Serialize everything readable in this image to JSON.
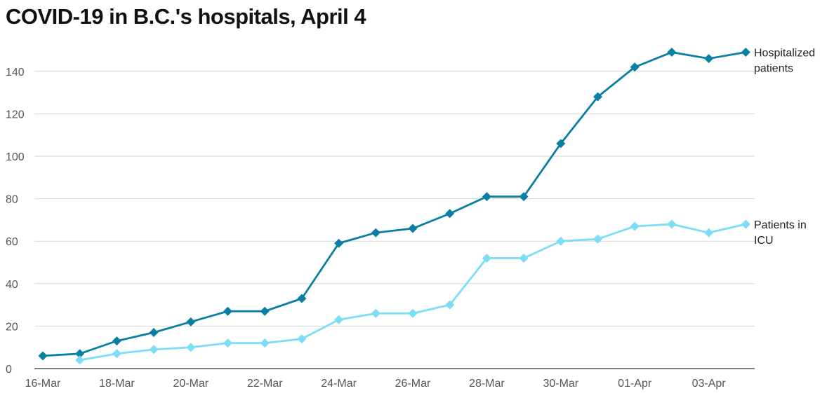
{
  "chart_data": {
    "type": "line",
    "title": "COVID-19 in B.C.'s hospitals, April 4",
    "xlabel": "",
    "ylabel": "",
    "ylim": [
      0,
      150
    ],
    "yticks": [
      0,
      20,
      40,
      60,
      80,
      100,
      120,
      140
    ],
    "grid": true,
    "x": [
      "16-Mar",
      "17-Mar",
      "18-Mar",
      "19-Mar",
      "20-Mar",
      "21-Mar",
      "22-Mar",
      "23-Mar",
      "24-Mar",
      "25-Mar",
      "26-Mar",
      "27-Mar",
      "28-Mar",
      "29-Mar",
      "30-Mar",
      "31-Mar",
      "01-Apr",
      "02-Apr",
      "03-Apr",
      "04-Apr"
    ],
    "xtick_labels": [
      "16-Mar",
      "18-Mar",
      "20-Mar",
      "22-Mar",
      "24-Mar",
      "26-Mar",
      "28-Mar",
      "30-Mar",
      "01-Apr",
      "03-Apr"
    ],
    "series": [
      {
        "name": "Hospitalized patients",
        "label_lines": [
          "Hospitalized",
          "patients"
        ],
        "color": "#0a7fa3",
        "values": [
          6,
          7,
          13,
          17,
          22,
          27,
          27,
          33,
          59,
          64,
          66,
          73,
          81,
          81,
          106,
          128,
          142,
          149,
          146,
          149
        ]
      },
      {
        "name": "Patients in ICU",
        "label_lines": [
          "Patients in",
          "ICU"
        ],
        "color": "#7ddcf6",
        "values": [
          null,
          4,
          7,
          9,
          10,
          12,
          12,
          14,
          23,
          26,
          26,
          30,
          52,
          52,
          60,
          61,
          67,
          68,
          64,
          68
        ]
      }
    ]
  }
}
